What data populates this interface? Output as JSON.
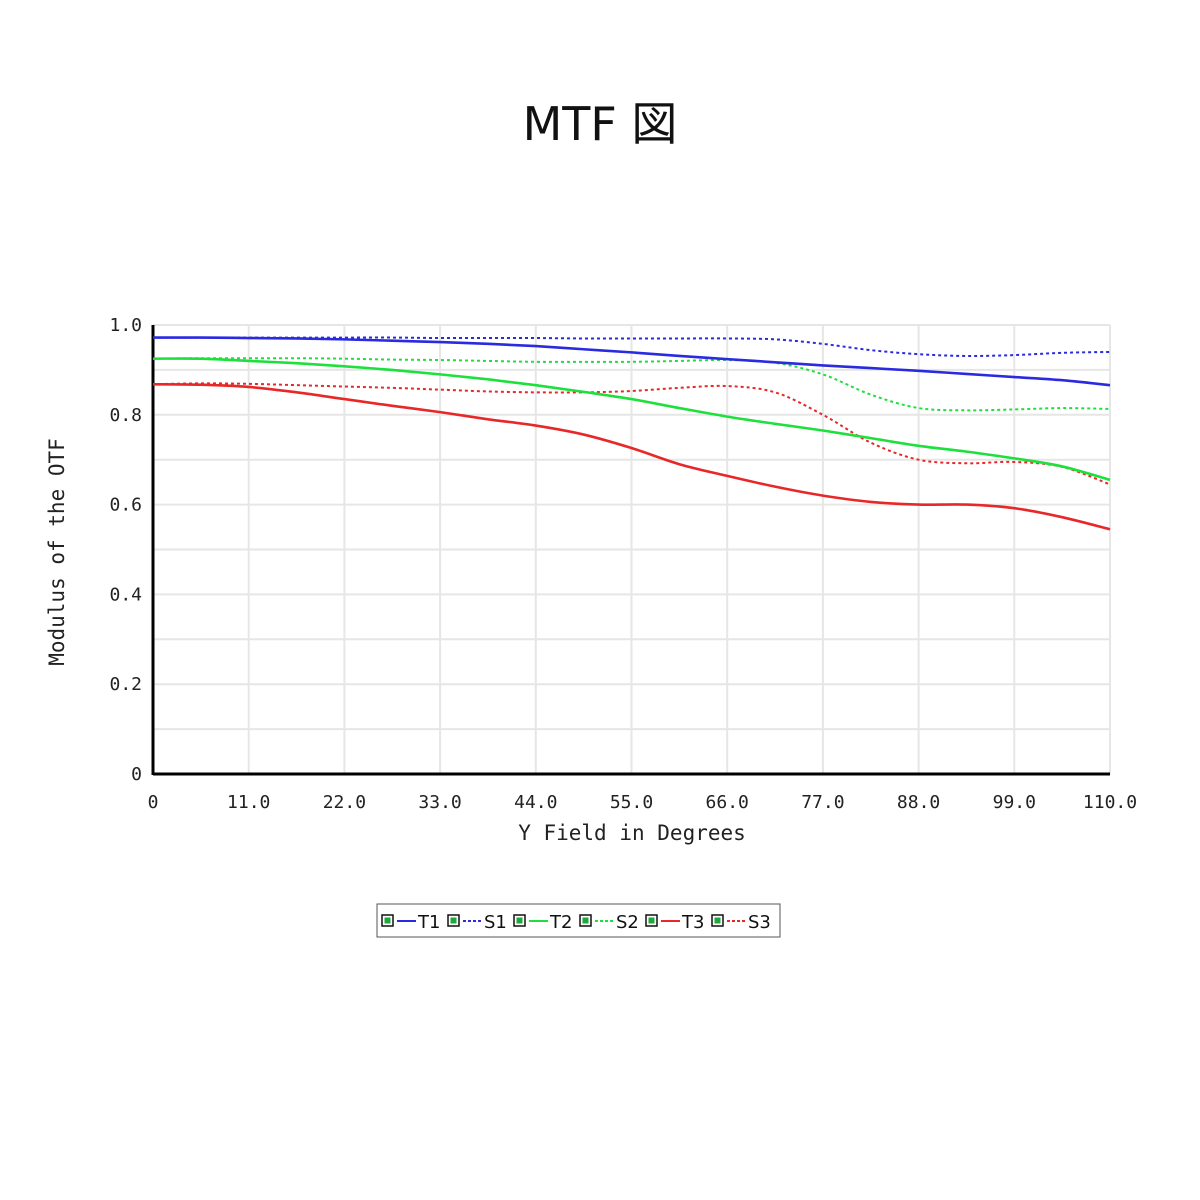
{
  "title": "MTF 図",
  "chart_data": {
    "type": "line",
    "xlabel": "Y Field in Degrees",
    "ylabel": "Modulus of the OTF",
    "xlim": [
      0,
      110
    ],
    "ylim": [
      0,
      1
    ],
    "x_ticks": [
      "0",
      "11.0",
      "22.0",
      "33.0",
      "44.0",
      "55.0",
      "66.0",
      "77.0",
      "88.0",
      "99.0",
      "110.0"
    ],
    "y_ticks": [
      "0",
      "0.2",
      "0.4",
      "0.6",
      "0.8",
      "1.0"
    ],
    "grid": true,
    "legend_position": "bottom",
    "x": [
      0,
      5.5,
      11,
      16.5,
      22,
      27.5,
      33,
      38.5,
      44,
      49.5,
      55,
      60.5,
      66,
      71.5,
      77,
      82.5,
      88,
      93.5,
      99,
      104.5,
      110
    ],
    "series": [
      {
        "name": "T1",
        "color": "#2a2ae0",
        "dash": "solid",
        "values": [
          0.972,
          0.972,
          0.971,
          0.97,
          0.968,
          0.965,
          0.962,
          0.958,
          0.953,
          0.946,
          0.939,
          0.931,
          0.924,
          0.917,
          0.91,
          0.904,
          0.898,
          0.891,
          0.884,
          0.877,
          0.866
        ]
      },
      {
        "name": "S1",
        "color": "#2a2ae0",
        "dash": "dotted",
        "values": [
          0.972,
          0.972,
          0.972,
          0.972,
          0.972,
          0.972,
          0.971,
          0.971,
          0.971,
          0.97,
          0.97,
          0.97,
          0.97,
          0.968,
          0.958,
          0.944,
          0.935,
          0.931,
          0.933,
          0.938,
          0.94
        ]
      },
      {
        "name": "T2",
        "color": "#1ee03c",
        "dash": "solid",
        "values": [
          0.925,
          0.925,
          0.92,
          0.915,
          0.908,
          0.9,
          0.89,
          0.879,
          0.866,
          0.851,
          0.835,
          0.815,
          0.796,
          0.78,
          0.765,
          0.748,
          0.731,
          0.718,
          0.703,
          0.685,
          0.655
        ]
      },
      {
        "name": "S2",
        "color": "#1ee03c",
        "dash": "dotted",
        "values": [
          0.925,
          0.926,
          0.926,
          0.926,
          0.925,
          0.923,
          0.922,
          0.92,
          0.918,
          0.918,
          0.918,
          0.92,
          0.922,
          0.916,
          0.89,
          0.845,
          0.815,
          0.81,
          0.812,
          0.815,
          0.813
        ]
      },
      {
        "name": "T3",
        "color": "#e82828",
        "dash": "solid",
        "values": [
          0.868,
          0.867,
          0.862,
          0.85,
          0.835,
          0.82,
          0.806,
          0.79,
          0.776,
          0.756,
          0.726,
          0.69,
          0.664,
          0.64,
          0.62,
          0.606,
          0.6,
          0.6,
          0.592,
          0.572,
          0.545
        ]
      },
      {
        "name": "S3",
        "color": "#e82828",
        "dash": "dotted",
        "values": [
          0.868,
          0.87,
          0.869,
          0.866,
          0.863,
          0.86,
          0.856,
          0.852,
          0.85,
          0.85,
          0.853,
          0.86,
          0.864,
          0.85,
          0.8,
          0.738,
          0.7,
          0.692,
          0.695,
          0.684,
          0.645
        ]
      }
    ]
  }
}
